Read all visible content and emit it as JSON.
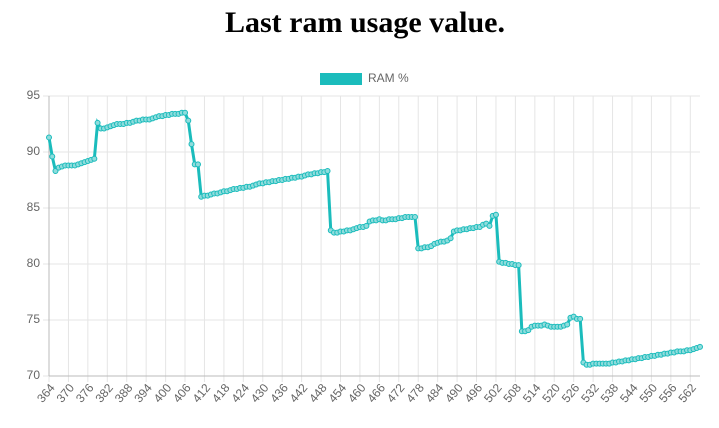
{
  "chart_data": {
    "type": "line",
    "title": "Last ram usage value.",
    "x": [
      364,
      365,
      366,
      367,
      368,
      369,
      370,
      371,
      372,
      373,
      374,
      375,
      376,
      377,
      378,
      379,
      380,
      381,
      382,
      383,
      384,
      385,
      386,
      387,
      388,
      389,
      390,
      391,
      392,
      393,
      394,
      395,
      396,
      397,
      398,
      399,
      400,
      401,
      402,
      403,
      404,
      405,
      406,
      407,
      408,
      409,
      410,
      411,
      412,
      413,
      414,
      415,
      416,
      417,
      418,
      419,
      420,
      421,
      422,
      423,
      424,
      425,
      426,
      427,
      428,
      429,
      430,
      431,
      432,
      433,
      434,
      435,
      436,
      437,
      438,
      439,
      440,
      441,
      442,
      443,
      444,
      445,
      446,
      447,
      448,
      449,
      450,
      451,
      452,
      453,
      454,
      455,
      456,
      457,
      458,
      459,
      460,
      461,
      462,
      463,
      464,
      465,
      466,
      467,
      468,
      469,
      470,
      471,
      472,
      473,
      474,
      475,
      476,
      477,
      478,
      479,
      480,
      481,
      482,
      483,
      484,
      485,
      486,
      487,
      488,
      489,
      490,
      491,
      492,
      493,
      494,
      495,
      496,
      497,
      498,
      499,
      500,
      501,
      502,
      503,
      504,
      505,
      506,
      507,
      508,
      509,
      510,
      511,
      512,
      513,
      514,
      515,
      516,
      517,
      518,
      519,
      520,
      521,
      522,
      523,
      524,
      525,
      526,
      527,
      528,
      529,
      530,
      531,
      532,
      533,
      534,
      535,
      536,
      537,
      538,
      539,
      540,
      541,
      542,
      543,
      544,
      545,
      546,
      547,
      548,
      549,
      550,
      551,
      552,
      553,
      554,
      555,
      556,
      557,
      558,
      559,
      560,
      561,
      562,
      563,
      564,
      565
    ],
    "series": [
      {
        "name": "RAM %",
        "color": "#1bbcbc",
        "values": [
          91.3,
          89.6,
          88.3,
          88.6,
          88.7,
          88.8,
          88.8,
          88.8,
          88.8,
          88.9,
          89.0,
          89.1,
          89.2,
          89.3,
          89.4,
          92.6,
          92.1,
          92.1,
          92.2,
          92.3,
          92.4,
          92.5,
          92.5,
          92.5,
          92.6,
          92.6,
          92.7,
          92.8,
          92.8,
          92.9,
          92.9,
          92.9,
          93.0,
          93.1,
          93.2,
          93.2,
          93.3,
          93.3,
          93.4,
          93.4,
          93.4,
          93.5,
          93.5,
          92.8,
          90.7,
          88.9,
          88.9,
          86.0,
          86.1,
          86.1,
          86.2,
          86.3,
          86.3,
          86.4,
          86.5,
          86.5,
          86.6,
          86.7,
          86.7,
          86.8,
          86.8,
          86.9,
          86.9,
          87.0,
          87.1,
          87.2,
          87.2,
          87.3,
          87.3,
          87.4,
          87.4,
          87.5,
          87.5,
          87.6,
          87.6,
          87.7,
          87.7,
          87.8,
          87.8,
          87.9,
          88.0,
          88.0,
          88.1,
          88.1,
          88.2,
          88.2,
          88.3,
          83.0,
          82.8,
          82.8,
          82.9,
          82.9,
          83.0,
          83.0,
          83.1,
          83.2,
          83.3,
          83.3,
          83.4,
          83.8,
          83.9,
          83.9,
          84.0,
          83.9,
          83.9,
          84.0,
          84.0,
          84.0,
          84.1,
          84.1,
          84.2,
          84.2,
          84.2,
          84.2,
          81.4,
          81.4,
          81.5,
          81.5,
          81.6,
          81.8,
          81.9,
          82.0,
          82.0,
          82.1,
          82.3,
          82.9,
          83.0,
          83.0,
          83.1,
          83.1,
          83.2,
          83.2,
          83.3,
          83.3,
          83.5,
          83.6,
          83.4,
          84.3,
          84.4,
          80.2,
          80.1,
          80.1,
          80.0,
          80.0,
          79.9,
          79.9,
          74.0,
          74.0,
          74.1,
          74.4,
          74.5,
          74.5,
          74.5,
          74.6,
          74.5,
          74.4,
          74.4,
          74.4,
          74.4,
          74.5,
          74.6,
          75.2,
          75.3,
          75.1,
          75.1,
          71.2,
          71.0,
          71.0,
          71.1,
          71.1,
          71.1,
          71.1,
          71.1,
          71.1,
          71.2,
          71.2,
          71.3,
          71.3,
          71.4,
          71.4,
          71.5,
          71.5,
          71.6,
          71.6,
          71.7,
          71.7,
          71.8,
          71.8,
          71.9,
          71.9,
          72.0,
          72.0,
          72.1,
          72.1,
          72.2,
          72.2,
          72.2,
          72.3,
          72.3,
          72.4,
          72.5,
          72.6
        ]
      }
    ],
    "xlim": [
      364,
      565
    ],
    "xticks": [
      364,
      370,
      376,
      382,
      388,
      394,
      400,
      406,
      412,
      418,
      424,
      430,
      436,
      442,
      448,
      454,
      460,
      466,
      472,
      478,
      484,
      490,
      496,
      502,
      508,
      514,
      520,
      526,
      532,
      538,
      544,
      550,
      556,
      562
    ],
    "ylim": [
      70,
      95
    ],
    "yticks": [
      70,
      75,
      80,
      85,
      90,
      95
    ],
    "grid": true,
    "legend": "top"
  }
}
